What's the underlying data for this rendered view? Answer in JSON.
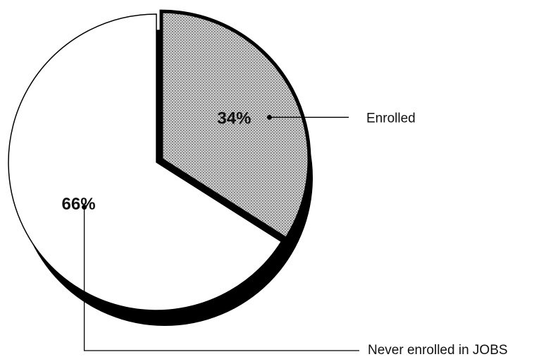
{
  "chart_data": {
    "type": "pie",
    "categories": [
      "Enrolled",
      "Never enrolled in JOBS"
    ],
    "values": [
      34,
      66
    ],
    "value_labels": [
      "34%",
      "66%"
    ],
    "colors": [
      "#bdbdbd",
      "#ffffff"
    ]
  }
}
